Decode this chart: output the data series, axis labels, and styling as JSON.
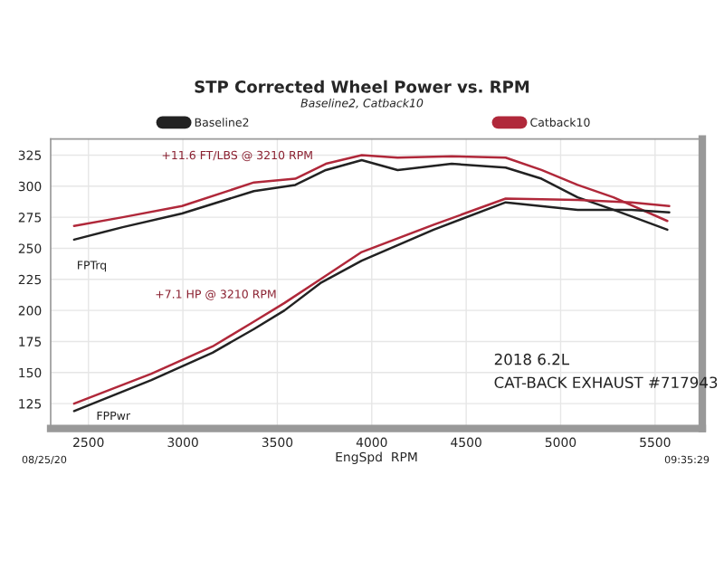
{
  "chart_data": {
    "type": "line",
    "title": "STP Corrected Wheel Power vs. RPM",
    "subtitle": "Baseline2, Catback10",
    "xlabel": "EngSpd  RPM",
    "xlim": [
      2300,
      5750
    ],
    "xticks": [
      2500,
      3000,
      3500,
      4000,
      4500,
      5000,
      5500
    ],
    "ylim": [
      105,
      338
    ],
    "yticks": [
      125,
      150,
      175,
      200,
      225,
      250,
      275,
      300,
      325
    ],
    "grid": true,
    "legend": "top",
    "line_style": "solid",
    "marker": "none",
    "series": [
      {
        "name": "Baseline2",
        "color": "#222222",
        "x": [
          2424,
          2681,
          2995,
          3376,
          3595,
          3757,
          3947,
          4137,
          4423,
          4709,
          4899,
          5090,
          5280,
          5565
        ],
        "values": [
          257,
          267,
          278,
          296,
          301,
          313,
          321,
          313,
          318,
          315,
          306,
          291,
          281,
          265
        ]
      },
      {
        "name": "Catback10",
        "color": "#b0283a",
        "x": [
          2424,
          2681,
          2995,
          3376,
          3595,
          3757,
          3947,
          4137,
          4423,
          4709,
          4899,
          5090,
          5280,
          5565
        ],
        "values": [
          268,
          275,
          284,
          303,
          306,
          318,
          325,
          323,
          324,
          323,
          313,
          301,
          291,
          272
        ]
      },
      {
        "color": "#222222",
        "x": [
          2424,
          2833,
          3157,
          3376,
          3538,
          3728,
          3947,
          4328,
          4709,
          5090,
          5375,
          5575
        ],
        "values": [
          119,
          144,
          166,
          185,
          200,
          222,
          240,
          265,
          287,
          281,
          281,
          279
        ]
      },
      {
        "color": "#b0283a",
        "x": [
          2424,
          2833,
          3157,
          3376,
          3538,
          3728,
          3947,
          4328,
          4709,
          5090,
          5375,
          5575
        ],
        "values": [
          125,
          149,
          171,
          191,
          206,
          225,
          247,
          269,
          290,
          289,
          287,
          284
        ]
      }
    ],
    "annotations": [
      "+11.6 FT/LBS @ 3210 RPM",
      "+7.1 HP @ 3210 RPM",
      "FPTrq",
      "FPPwr",
      "2018 6.2L",
      "CAT-BACK EXHAUST #717943",
      "08/25/20",
      "09:35:29"
    ]
  }
}
